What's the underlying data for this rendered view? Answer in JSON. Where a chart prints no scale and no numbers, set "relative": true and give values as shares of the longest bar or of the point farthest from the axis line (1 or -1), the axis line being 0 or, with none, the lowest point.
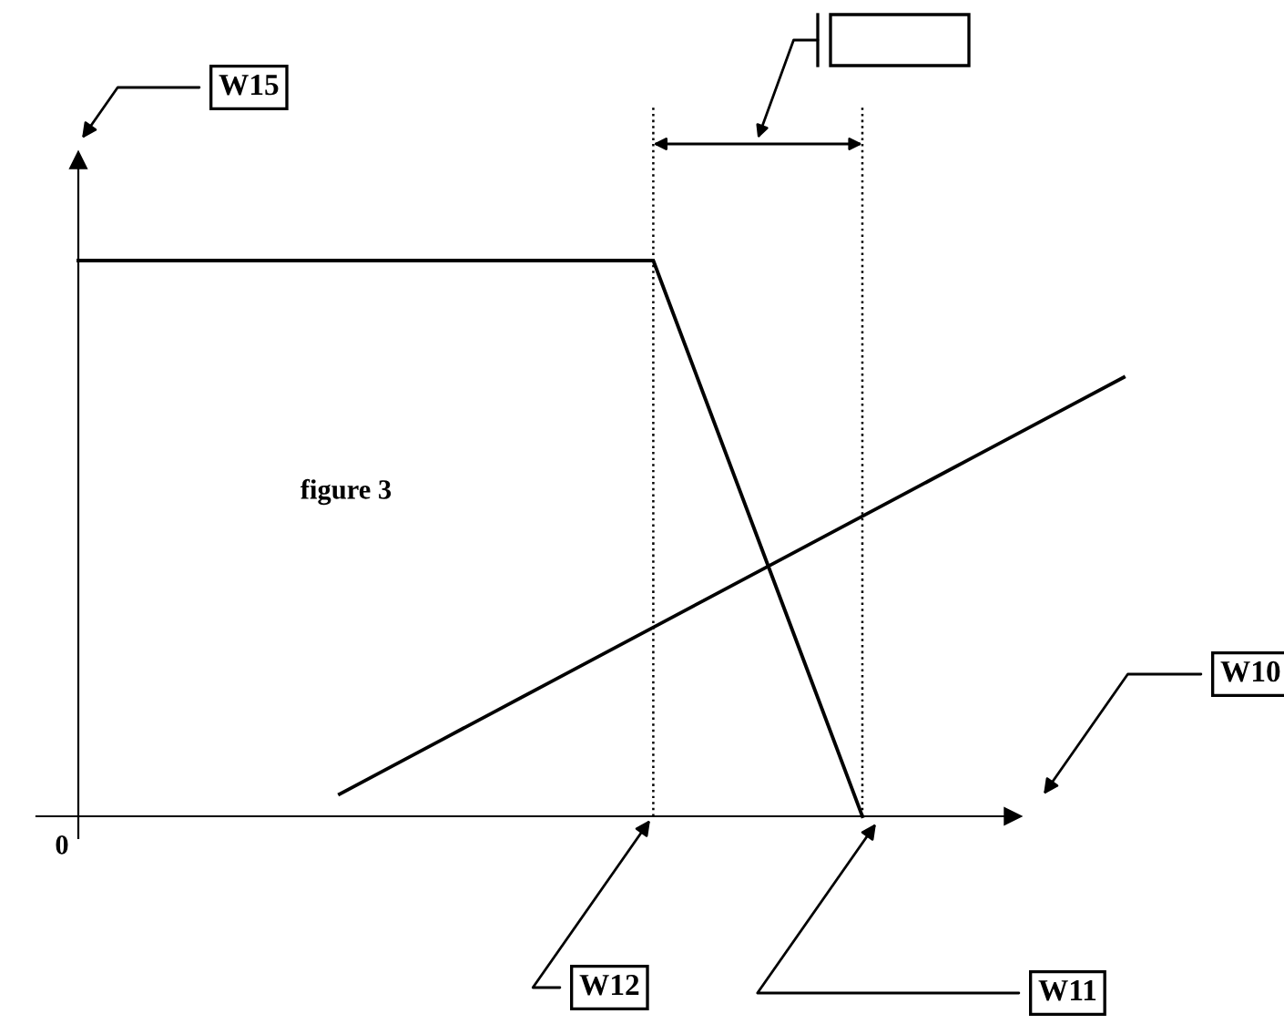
{
  "chart_data": {
    "type": "line",
    "relative": true,
    "categories": [
      null,
      null,
      null,
      null,
      null,
      null,
      null,
      null,
      null,
      null,
      null,
      null,
      null,
      null,
      null,
      null,
      null,
      null,
      null,
      null,
      null
    ],
    "tick_labels": false,
    "marker": "none",
    "line_style": "solid",
    "series": [
      {
        "values": [
          1,
          1,
          1,
          1,
          1,
          1,
          1,
          1,
          1,
          1,
          1,
          1,
          0.75,
          0.5,
          0.25,
          0,
          null,
          null,
          null,
          null,
          null
        ],
        "color": "#000000"
      },
      {
        "values": [
          null,
          null,
          null,
          null,
          null,
          0.04,
          0.09,
          0.14,
          0.19,
          0.24,
          0.29,
          0.34,
          0.39,
          0.44,
          0.49,
          0.54,
          0.59,
          0.64,
          0.69,
          0.74,
          0.79
        ],
        "color": "#000000"
      }
    ],
    "annotations": [
      "figure 3",
      "0",
      "W15",
      "W10",
      "W12",
      "W11"
    ]
  }
}
